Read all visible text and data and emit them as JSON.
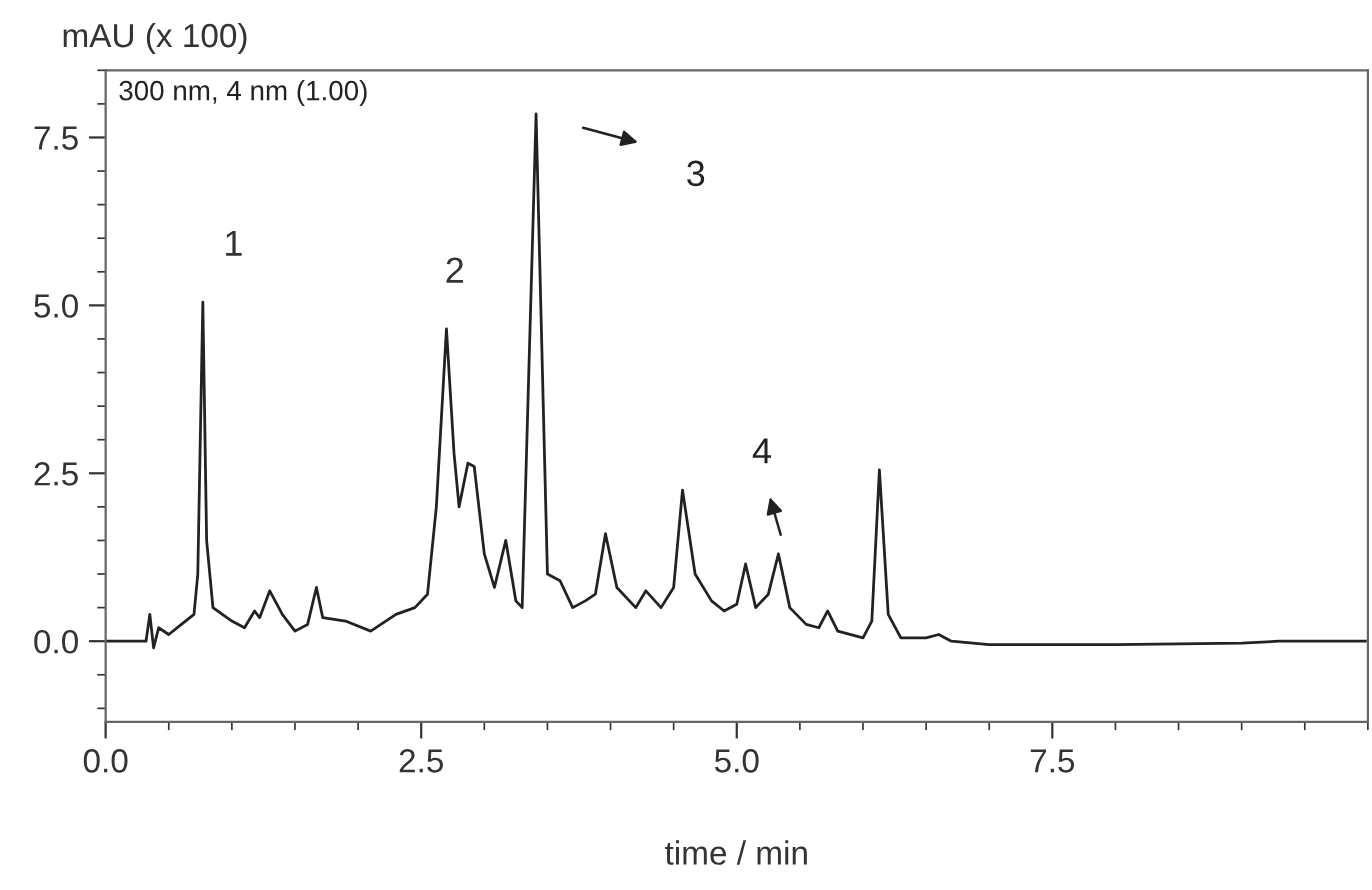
{
  "chart_data": {
    "type": "line",
    "xlabel": "time / min",
    "ylabel": "mAU (x 100)",
    "x": [
      0,
      0.32,
      0.35,
      0.38,
      0.42,
      0.5,
      0.6,
      0.7,
      0.73,
      0.77,
      0.8,
      0.85,
      1.0,
      1.1,
      1.18,
      1.22,
      1.3,
      1.4,
      1.5,
      1.6,
      1.67,
      1.72,
      1.9,
      2.1,
      2.3,
      2.45,
      2.55,
      2.62,
      2.7,
      2.76,
      2.8,
      2.87,
      2.92,
      3.0,
      3.08,
      3.17,
      3.25,
      3.3,
      3.41,
      3.5,
      3.6,
      3.7,
      3.8,
      3.88,
      3.96,
      4.05,
      4.2,
      4.28,
      4.4,
      4.5,
      4.57,
      4.67,
      4.8,
      4.9,
      5.0,
      5.07,
      5.15,
      5.25,
      5.33,
      5.42,
      5.55,
      5.65,
      5.72,
      5.8,
      6.0,
      6.07,
      6.13,
      6.2,
      6.3,
      6.5,
      6.6,
      6.7,
      7.0,
      8.0,
      9.0,
      9.3,
      9.98
    ],
    "series": [
      {
        "color": "#222222",
        "values": [
          0,
          0,
          0.4,
          -0.1,
          0.2,
          0.1,
          0.25,
          0.4,
          1.0,
          5.05,
          1.5,
          0.5,
          0.3,
          0.2,
          0.45,
          0.35,
          0.75,
          0.4,
          0.15,
          0.25,
          0.8,
          0.35,
          0.3,
          0.15,
          0.4,
          0.5,
          0.7,
          2.0,
          4.65,
          2.8,
          2.0,
          2.65,
          2.6,
          1.3,
          0.8,
          1.5,
          0.6,
          0.5,
          7.85,
          1.0,
          0.9,
          0.5,
          0.6,
          0.7,
          1.6,
          0.8,
          0.5,
          0.75,
          0.5,
          0.8,
          2.25,
          1.0,
          0.6,
          0.45,
          0.55,
          1.15,
          0.5,
          0.7,
          1.3,
          0.5,
          0.25,
          0.2,
          0.45,
          0.15,
          0.05,
          0.3,
          2.55,
          0.4,
          0.05,
          0.05,
          0.1,
          0.0,
          -0.05,
          -0.05,
          -0.03,
          0.0,
          0.0
        ]
      }
    ],
    "xlim": [
      0,
      10
    ],
    "ylim": [
      -1.2,
      8.5
    ],
    "xticks": [
      {
        "value": 0,
        "label": "0.0"
      },
      2.5,
      {
        "value": 5,
        "label": "5.0"
      },
      7.5
    ],
    "yticks": [
      {
        "value": 0,
        "label": "0.0"
      },
      2.5,
      {
        "value": 5,
        "label": "5.0"
      },
      7.5
    ],
    "grid": false,
    "legend": false,
    "marker": "none",
    "line_style": "solid",
    "annotations": [
      "300 nm, 4 nm (1.00)",
      {
        "text": "1",
        "x": 0.77,
        "y": 5.05
      },
      {
        "text": "2",
        "x": 2.7,
        "y": 4.65
      },
      "3",
      "4"
    ]
  }
}
